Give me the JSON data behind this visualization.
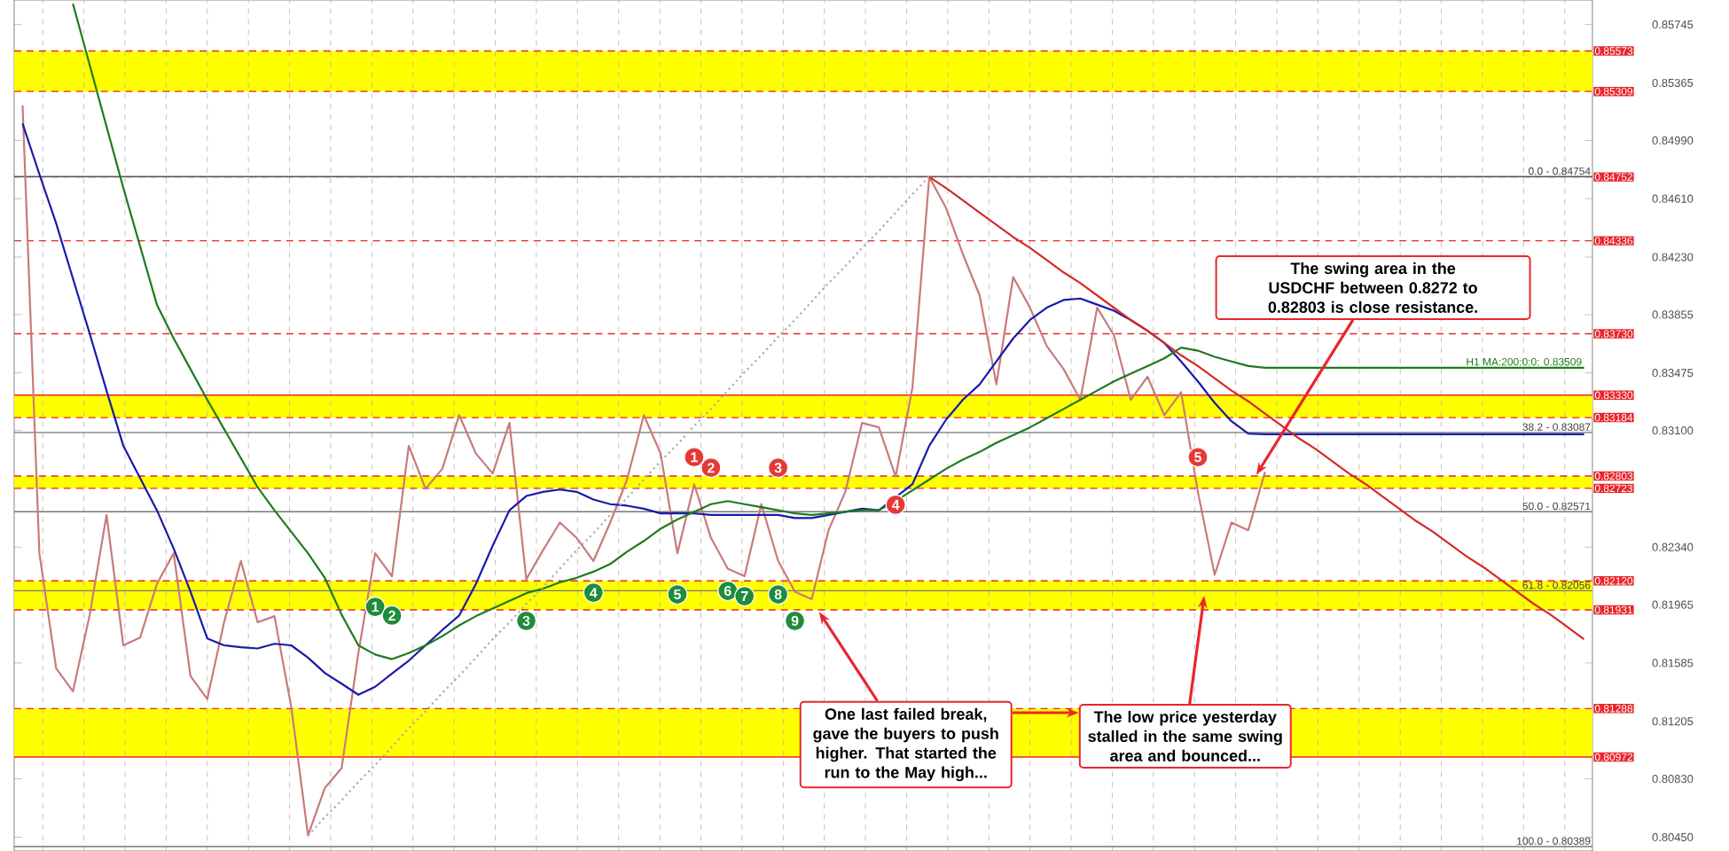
{
  "chart_data": {
    "type": "line",
    "categories": [
      null,
      null,
      null,
      null,
      null,
      null,
      null,
      null,
      null,
      null,
      null,
      null,
      null,
      null,
      null,
      null,
      null,
      null,
      null,
      null,
      null,
      null,
      null,
      null,
      null,
      null,
      null,
      null,
      null,
      null,
      null,
      null,
      null,
      null,
      null,
      null,
      null,
      null,
      null,
      null,
      null,
      null,
      null,
      null,
      null,
      null,
      null,
      null,
      null,
      null,
      null,
      null,
      null,
      null,
      null,
      null,
      null,
      null,
      null,
      null,
      null,
      null,
      null,
      null,
      null,
      null,
      null,
      null,
      null,
      null,
      null,
      null,
      null,
      null,
      null,
      null,
      null,
      null,
      null,
      null,
      null,
      null,
      null,
      null,
      null,
      null,
      null,
      null,
      null,
      null,
      null,
      null,
      null,
      null
    ],
    "ylim": [
      0.8036,
      0.85905
    ],
    "yticks": [
      0.85745,
      0.85365,
      {
        "value": 0.8499,
        "label": "0.84990"
      },
      {
        "value": 0.8461,
        "label": "0.84610"
      },
      {
        "value": 0.8423,
        "label": "0.84230"
      },
      0.83855,
      0.83475,
      {
        "value": 0.831,
        "label": "0.83100"
      },
      {
        "value": 0.8234,
        "label": "0.82340"
      },
      0.81965,
      0.81585,
      0.81205,
      {
        "value": 0.8083,
        "label": "0.80830"
      },
      {
        "value": 0.8045,
        "label": "0.80450"
      }
    ],
    "tick_labels": "y",
    "grid": "x",
    "bands": [
      {
        "axis": "y",
        "from": 0.85309,
        "to": 0.85573,
        "color": "#ffff00"
      },
      {
        "axis": "y",
        "from": 0.83184,
        "to": 0.8333,
        "color": "#ffff00"
      },
      {
        "axis": "y",
        "from": 0.82723,
        "to": 0.82803,
        "color": "#ffff00"
      },
      {
        "axis": "y",
        "from": 0.81931,
        "to": 0.8212,
        "color": "#ffff00"
      },
      {
        "axis": "y",
        "from": 0.80972,
        "to": 0.81288,
        "color": "#ffff00"
      }
    ],
    "ref_lines": [
      {
        "axis": "y",
        "value": 0.85573,
        "label": "0.85573",
        "color": "#e8262b",
        "line_style": "dashed"
      },
      {
        "axis": "y",
        "value": 0.85309,
        "label": "0.85309",
        "color": "#e8262b",
        "line_style": "dashed"
      },
      {
        "axis": "y",
        "value": 0.84752,
        "label": "0.84752",
        "color": "#e8262b",
        "line_style": "dashed"
      },
      {
        "axis": "y",
        "value": 0.84336,
        "label": "0.84336",
        "color": "#e8262b",
        "line_style": "dashed"
      },
      {
        "axis": "y",
        "value": 0.8373,
        "label": "0.83730",
        "color": "#e8262b",
        "line_style": "dashed"
      },
      {
        "axis": "y",
        "value": 0.8333,
        "label": "0.83330",
        "color": "#e8262b",
        "line_style": "solid"
      },
      {
        "axis": "y",
        "value": 0.83184,
        "label": "0.83184",
        "color": "#e8262b",
        "line_style": "dashed"
      },
      {
        "axis": "y",
        "value": 0.82803,
        "label": "0.82803",
        "color": "#e8262b",
        "line_style": "dashed"
      },
      {
        "axis": "y",
        "value": 0.82723,
        "label": "0.82723",
        "color": "#e8262b",
        "line_style": "dashed"
      },
      {
        "axis": "y",
        "value": 0.8212,
        "label": "0.82120",
        "color": "#e8262b",
        "line_style": "dashed"
      },
      {
        "axis": "y",
        "value": 0.81931,
        "label": "0.81931",
        "color": "#e8262b",
        "line_style": "dashed"
      },
      {
        "axis": "y",
        "value": 0.81288,
        "label": "0.81288",
        "color": "#e8262b",
        "line_style": "dashed"
      },
      {
        "axis": "y",
        "value": 0.80972,
        "label": "0.80972",
        "color": "#e8262b",
        "line_style": "solid"
      },
      {
        "axis": "y",
        "value": 0.84754,
        "color": "#555555",
        "line_style": "solid"
      },
      {
        "axis": "y",
        "value": 0.83087,
        "color": "#777777",
        "line_style": "solid"
      },
      {
        "axis": "y",
        "value": 0.82571,
        "color": "#777777",
        "line_style": "solid"
      },
      {
        "axis": "y",
        "value": 0.82056,
        "color": "#777777",
        "line_style": "solid"
      },
      {
        "axis": "y",
        "value": 0.80389,
        "color": "#777777",
        "line_style": "solid"
      }
    ],
    "series": [
      {
        "type": "line",
        "color": "#c97a7a",
        "values": [
          0.85218,
          0.823,
          0.8155,
          0.814,
          0.819,
          0.8255,
          0.817,
          0.8175,
          0.821,
          0.823,
          0.815,
          0.8135,
          0.8185,
          0.8225,
          0.8185,
          0.8189,
          0.813,
          0.80462,
          0.8077,
          0.809,
          0.8165,
          0.823,
          0.8215,
          0.83,
          0.8272,
          0.8285,
          0.832,
          0.8295,
          0.8282,
          0.8315,
          0.8213,
          0.8232,
          0.825,
          0.824,
          0.8225,
          0.825,
          0.8278,
          0.832,
          0.8295,
          0.823,
          0.8275,
          0.824,
          0.822,
          0.8215,
          0.8262,
          0.8225,
          0.8205,
          0.82,
          0.8245,
          0.827,
          0.8315,
          0.8312,
          0.828,
          0.8338,
          0.84752,
          0.8455,
          0.8425,
          0.8398,
          0.834,
          0.841,
          0.839,
          0.8365,
          0.835,
          0.833,
          0.839,
          0.8372,
          0.833,
          0.8345,
          0.832,
          0.8335,
          0.827,
          0.8216,
          0.825,
          0.8245,
          0.8283,
          null,
          null,
          null,
          null,
          null,
          null,
          null,
          null,
          null,
          null,
          null,
          null,
          null,
          null,
          null,
          null,
          null,
          null,
          null
        ]
      },
      {
        "type": "line",
        "color": "#1a1aa8",
        "values": [
          0.851,
          0.8477,
          0.8445,
          0.8409,
          0.8373,
          0.8336,
          0.83,
          0.8279,
          0.8258,
          0.8233,
          0.8205,
          0.81745,
          0.817,
          0.81688,
          0.8168,
          0.8171,
          0.817,
          0.8162,
          0.8152,
          0.8145,
          0.81378,
          0.8143,
          0.81516,
          0.816,
          0.817,
          0.818,
          0.81894,
          0.821,
          0.8235,
          0.8258,
          0.82673,
          0.827,
          0.82715,
          0.827,
          0.8265,
          0.8262,
          0.8261,
          0.8259,
          0.8256,
          0.8256,
          0.8256,
          0.8255,
          0.8255,
          0.8255,
          0.8255,
          0.8255,
          0.8253,
          0.8253,
          0.8255,
          0.8257,
          0.8259,
          0.8258,
          null,
          0.8275,
          0.83,
          0.8317,
          0.833,
          0.834,
          0.8355,
          0.837,
          0.8382,
          0.839,
          0.8395,
          0.8396,
          0.8392,
          0.8388,
          0.8382,
          0.8375,
          0.8367,
          0.8355,
          0.8342,
          0.8328,
          0.8316,
          0.8308,
          0.83075,
          0.83075,
          0.83075,
          0.83075,
          0.83075,
          0.83075,
          0.83075,
          0.83075,
          0.83075,
          0.83075,
          0.83075,
          0.83075,
          0.83075,
          0.83075,
          0.83075,
          0.83075,
          0.83075,
          0.83075,
          0.83075,
          0.83075
        ]
      },
      {
        "type": "line",
        "name": "H1 MA:200:0:0: 0.83509",
        "color": "#1f7a1f",
        "values": [
          null,
          null,
          null,
          0.8588,
          0.8548,
          0.8508,
          0.8468,
          0.843,
          0.8392,
          0.837,
          0.835,
          0.833,
          0.8311,
          0.8292,
          0.8273,
          0.8258,
          0.8244,
          0.823,
          0.8214,
          0.819,
          0.817,
          0.8164,
          0.8161,
          0.8165,
          0.817,
          0.8176,
          0.8183,
          0.8189,
          0.8194,
          0.8199,
          0.8204,
          0.8207,
          0.8211,
          0.8214,
          0.8218,
          0.8223,
          0.8231,
          0.8238,
          0.8246,
          0.8252,
          0.8257,
          0.8262,
          0.8264,
          0.8262,
          0.826,
          0.8258,
          0.8256,
          0.8255,
          0.8256,
          0.8257,
          0.8258,
          0.8258,
          0.8264,
          0.8271,
          0.8278,
          0.8285,
          0.8291,
          0.8296,
          0.8302,
          0.8307,
          0.8312,
          0.8318,
          0.8324,
          0.833,
          0.8336,
          0.8342,
          0.8347,
          0.8352,
          0.8357,
          0.8364,
          0.8362,
          0.8358,
          0.8355,
          0.8352,
          0.83509,
          0.83509,
          0.83509,
          0.83509,
          0.83509,
          0.83509,
          0.83509,
          0.83509,
          0.83509,
          0.83509,
          0.83509,
          0.83509,
          0.83509,
          0.83509,
          0.83509,
          0.83509,
          0.83509,
          0.83509,
          0.83509,
          0.83509
        ]
      },
      {
        "type": "line",
        "color": "#d42a2a",
        "values": [
          null,
          null,
          null,
          null,
          null,
          null,
          null,
          null,
          null,
          null,
          null,
          null,
          null,
          null,
          null,
          null,
          null,
          null,
          null,
          null,
          null,
          null,
          null,
          null,
          null,
          null,
          null,
          null,
          null,
          null,
          null,
          null,
          null,
          null,
          null,
          null,
          null,
          null,
          null,
          null,
          null,
          null,
          null,
          null,
          null,
          null,
          null,
          null,
          null,
          null,
          null,
          null,
          null,
          null,
          0.84752,
          0.8468,
          0.846,
          0.8452,
          0.8444,
          0.8436,
          0.8429,
          0.8421,
          0.8413,
          0.8406,
          0.8398,
          0.839,
          0.8382,
          0.8375,
          0.8367,
          0.8359,
          0.8352,
          0.8344,
          0.8336,
          0.8329,
          0.8321,
          0.8313,
          0.8305,
          0.8298,
          0.829,
          0.8282,
          0.8275,
          0.8267,
          0.8259,
          0.8251,
          0.8244,
          0.8236,
          0.8228,
          0.8221,
          0.8213,
          0.8205,
          0.8197,
          0.819,
          0.8182,
          0.8174
        ]
      },
      {
        "type": "line",
        "color": "#aaaaaa",
        "line_style": "dotted",
        "values": [
          null,
          null,
          null,
          null,
          null,
          null,
          null,
          null,
          null,
          null,
          null,
          null,
          null,
          null,
          null,
          null,
          null,
          0.8046,
          0.8058,
          0.8069,
          0.8081,
          0.8092,
          0.8104,
          0.8116,
          0.8127,
          0.8139,
          0.815,
          0.8162,
          0.8174,
          0.8185,
          0.8197,
          0.8208,
          0.822,
          0.8232,
          0.8243,
          0.8255,
          0.8266,
          0.8278,
          0.829,
          0.8301,
          0.8313,
          0.8324,
          0.8336,
          0.8348,
          0.8359,
          0.8371,
          0.8382,
          0.8394,
          0.8406,
          0.8417,
          0.8429,
          0.844,
          0.8452,
          0.8464,
          0.84754,
          null,
          null,
          null,
          null,
          null,
          null,
          null,
          null,
          null,
          null,
          null,
          null,
          null,
          null,
          null,
          null,
          null,
          null,
          null,
          null,
          null,
          null,
          null,
          null,
          null,
          null,
          null,
          null,
          null,
          null,
          null,
          null,
          null,
          null,
          null,
          null,
          null,
          null,
          null
        ]
      },
      {
        "type": "scatter",
        "marker": "circle",
        "name": "1",
        "color": "#1e8c3a",
        "values": [
          null,
          null,
          null,
          null,
          null,
          null,
          null,
          null,
          null,
          null,
          null,
          null,
          null,
          null,
          null,
          null,
          null,
          null,
          null,
          null,
          null,
          0.81951,
          null,
          null,
          null,
          null,
          null,
          null,
          null,
          null,
          null,
          null,
          null,
          null,
          null,
          null,
          null,
          null,
          null,
          null,
          null,
          null,
          null,
          null,
          null,
          null,
          null,
          null,
          null,
          null,
          null,
          null,
          null,
          null,
          null,
          null,
          null,
          null,
          null,
          null,
          null,
          null,
          null,
          null,
          null,
          null,
          null,
          null,
          null,
          null,
          null,
          null,
          null,
          null,
          null,
          null,
          null,
          null,
          null,
          null,
          null,
          null,
          null,
          null,
          null,
          null,
          null,
          null,
          null,
          null,
          null,
          null,
          null,
          null
        ]
      },
      {
        "type": "scatter",
        "marker": "circle",
        "name": "2",
        "color": "#1e8c3a",
        "values": [
          null,
          null,
          null,
          null,
          null,
          null,
          null,
          null,
          null,
          null,
          null,
          null,
          null,
          null,
          null,
          null,
          null,
          null,
          null,
          null,
          null,
          null,
          0.81894,
          null,
          null,
          null,
          null,
          null,
          null,
          null,
          null,
          null,
          null,
          null,
          null,
          null,
          null,
          null,
          null,
          null,
          null,
          null,
          null,
          null,
          null,
          null,
          null,
          null,
          null,
          null,
          null,
          null,
          null,
          null,
          null,
          null,
          null,
          null,
          null,
          null,
          null,
          null,
          null,
          null,
          null,
          null,
          null,
          null,
          null,
          null,
          null,
          null,
          null,
          null,
          null,
          null,
          null,
          null,
          null,
          null,
          null,
          null,
          null,
          null,
          null,
          null,
          null,
          null,
          null,
          null,
          null,
          null,
          null,
          null
        ]
      },
      {
        "type": "scatter",
        "marker": "circle",
        "name": "3",
        "color": "#1e8c3a",
        "values": [
          null,
          null,
          null,
          null,
          null,
          null,
          null,
          null,
          null,
          null,
          null,
          null,
          null,
          null,
          null,
          null,
          null,
          null,
          null,
          null,
          null,
          null,
          null,
          null,
          null,
          null,
          null,
          null,
          null,
          null,
          0.8186,
          null,
          null,
          null,
          null,
          null,
          null,
          null,
          null,
          null,
          null,
          null,
          null,
          null,
          null,
          null,
          null,
          null,
          null,
          null,
          null,
          null,
          null,
          null,
          null,
          null,
          null,
          null,
          null,
          null,
          null,
          null,
          null,
          null,
          null,
          null,
          null,
          null,
          null,
          null,
          null,
          null,
          null,
          null,
          null,
          null,
          null,
          null,
          null,
          null,
          null,
          null,
          null,
          null,
          null,
          null,
          null,
          null,
          null,
          null,
          null,
          null,
          null,
          null
        ]
      },
      {
        "type": "scatter",
        "marker": "circle",
        "name": "4",
        "color": "#1e8c3a",
        "values": [
          null,
          null,
          null,
          null,
          null,
          null,
          null,
          null,
          null,
          null,
          null,
          null,
          null,
          null,
          null,
          null,
          null,
          null,
          null,
          null,
          null,
          null,
          null,
          null,
          null,
          null,
          null,
          null,
          null,
          null,
          null,
          null,
          null,
          null,
          0.82043,
          null,
          null,
          null,
          null,
          null,
          null,
          null,
          null,
          null,
          null,
          null,
          null,
          null,
          null,
          null,
          null,
          null,
          null,
          null,
          null,
          null,
          null,
          null,
          null,
          null,
          null,
          null,
          null,
          null,
          null,
          null,
          null,
          null,
          null,
          null,
          null,
          null,
          null,
          null,
          null,
          null,
          null,
          null,
          null,
          null,
          null,
          null,
          null,
          null,
          null,
          null,
          null,
          null,
          null,
          null,
          null,
          null,
          null,
          null
        ]
      },
      {
        "type": "scatter",
        "marker": "circle",
        "name": "5",
        "color": "#1e8c3a",
        "values": [
          null,
          null,
          null,
          null,
          null,
          null,
          null,
          null,
          null,
          null,
          null,
          null,
          null,
          null,
          null,
          null,
          null,
          null,
          null,
          null,
          null,
          null,
          null,
          null,
          null,
          null,
          null,
          null,
          null,
          null,
          null,
          null,
          null,
          null,
          null,
          null,
          null,
          null,
          null,
          0.82032,
          null,
          null,
          null,
          null,
          null,
          null,
          null,
          null,
          null,
          null,
          null,
          null,
          null,
          null,
          null,
          null,
          null,
          null,
          null,
          null,
          null,
          null,
          null,
          null,
          null,
          null,
          null,
          null,
          null,
          null,
          null,
          null,
          null,
          null,
          null,
          null,
          null,
          null,
          null,
          null,
          null,
          null,
          null,
          null,
          null,
          null,
          null,
          null,
          null,
          null,
          null,
          null,
          null,
          null
        ]
      },
      {
        "type": "scatter",
        "marker": "circle",
        "name": "6",
        "color": "#1e8c3a",
        "values": [
          null,
          null,
          null,
          null,
          null,
          null,
          null,
          null,
          null,
          null,
          null,
          null,
          null,
          null,
          null,
          null,
          null,
          null,
          null,
          null,
          null,
          null,
          null,
          null,
          null,
          null,
          null,
          null,
          null,
          null,
          null,
          null,
          null,
          null,
          null,
          null,
          null,
          null,
          null,
          null,
          null,
          null,
          0.82055,
          null,
          null,
          null,
          null,
          null,
          null,
          null,
          null,
          null,
          null,
          null,
          null,
          null,
          null,
          null,
          null,
          null,
          null,
          null,
          null,
          null,
          null,
          null,
          null,
          null,
          null,
          null,
          null,
          null,
          null,
          null,
          null,
          null,
          null,
          null,
          null,
          null,
          null,
          null,
          null,
          null,
          null,
          null,
          null,
          null,
          null,
          null,
          null,
          null,
          null,
          null
        ]
      },
      {
        "type": "scatter",
        "marker": "circle",
        "name": "7",
        "color": "#1e8c3a",
        "values": [
          null,
          null,
          null,
          null,
          null,
          null,
          null,
          null,
          null,
          null,
          null,
          null,
          null,
          null,
          null,
          null,
          null,
          null,
          null,
          null,
          null,
          null,
          null,
          null,
          null,
          null,
          null,
          null,
          null,
          null,
          null,
          null,
          null,
          null,
          null,
          null,
          null,
          null,
          null,
          null,
          null,
          null,
          null,
          0.8202,
          null,
          null,
          null,
          null,
          null,
          null,
          null,
          null,
          null,
          null,
          null,
          null,
          null,
          null,
          null,
          null,
          null,
          null,
          null,
          null,
          null,
          null,
          null,
          null,
          null,
          null,
          null,
          null,
          null,
          null,
          null,
          null,
          null,
          null,
          null,
          null,
          null,
          null,
          null,
          null,
          null,
          null,
          null,
          null,
          null,
          null,
          null,
          null,
          null,
          null
        ]
      },
      {
        "type": "scatter",
        "marker": "circle",
        "name": "8",
        "color": "#1e8c3a",
        "values": [
          null,
          null,
          null,
          null,
          null,
          null,
          null,
          null,
          null,
          null,
          null,
          null,
          null,
          null,
          null,
          null,
          null,
          null,
          null,
          null,
          null,
          null,
          null,
          null,
          null,
          null,
          null,
          null,
          null,
          null,
          null,
          null,
          null,
          null,
          null,
          null,
          null,
          null,
          null,
          null,
          null,
          null,
          null,
          null,
          null,
          0.82032,
          null,
          null,
          null,
          null,
          null,
          null,
          null,
          null,
          null,
          null,
          null,
          null,
          null,
          null,
          null,
          null,
          null,
          null,
          null,
          null,
          null,
          null,
          null,
          null,
          null,
          null,
          null,
          null,
          null,
          null,
          null,
          null,
          null,
          null,
          null,
          null,
          null,
          null,
          null,
          null,
          null,
          null,
          null,
          null,
          null,
          null,
          null,
          null
        ]
      },
      {
        "type": "scatter",
        "marker": "circle",
        "name": "9",
        "color": "#1e8c3a",
        "values": [
          null,
          null,
          null,
          null,
          null,
          null,
          null,
          null,
          null,
          null,
          null,
          null,
          null,
          null,
          null,
          null,
          null,
          null,
          null,
          null,
          null,
          null,
          null,
          null,
          null,
          null,
          null,
          null,
          null,
          null,
          null,
          null,
          null,
          null,
          null,
          null,
          null,
          null,
          null,
          null,
          null,
          null,
          null,
          null,
          null,
          null,
          0.8186,
          null,
          null,
          null,
          null,
          null,
          null,
          null,
          null,
          null,
          null,
          null,
          null,
          null,
          null,
          null,
          null,
          null,
          null,
          null,
          null,
          null,
          null,
          null,
          null,
          null,
          null,
          null,
          null,
          null,
          null,
          null,
          null,
          null,
          null,
          null,
          null,
          null,
          null,
          null,
          null,
          null,
          null,
          null,
          null,
          null,
          null,
          null
        ]
      },
      {
        "type": "scatter",
        "marker": "circle",
        "name": "1",
        "color": "#e53935",
        "values": [
          null,
          null,
          null,
          null,
          null,
          null,
          null,
          null,
          null,
          null,
          null,
          null,
          null,
          null,
          null,
          null,
          null,
          null,
          null,
          null,
          null,
          null,
          null,
          null,
          null,
          null,
          null,
          null,
          null,
          null,
          null,
          null,
          null,
          null,
          null,
          null,
          null,
          null,
          null,
          null,
          0.82926,
          null,
          null,
          null,
          null,
          null,
          null,
          null,
          null,
          null,
          null,
          null,
          null,
          null,
          null,
          null,
          null,
          null,
          null,
          null,
          null,
          null,
          null,
          null,
          null,
          null,
          null,
          null,
          null,
          null,
          null,
          null,
          null,
          null,
          null,
          null,
          null,
          null,
          null,
          null,
          null,
          null,
          null,
          null,
          null,
          null,
          null,
          null,
          null,
          null,
          null,
          null,
          null,
          null
        ]
      },
      {
        "type": "scatter",
        "marker": "circle",
        "name": "2",
        "color": "#e53935",
        "values": [
          null,
          null,
          null,
          null,
          null,
          null,
          null,
          null,
          null,
          null,
          null,
          null,
          null,
          null,
          null,
          null,
          null,
          null,
          null,
          null,
          null,
          null,
          null,
          null,
          null,
          null,
          null,
          null,
          null,
          null,
          null,
          null,
          null,
          null,
          null,
          null,
          null,
          null,
          null,
          null,
          null,
          0.82857,
          null,
          null,
          null,
          null,
          null,
          null,
          null,
          null,
          null,
          null,
          null,
          null,
          null,
          null,
          null,
          null,
          null,
          null,
          null,
          null,
          null,
          null,
          null,
          null,
          null,
          null,
          null,
          null,
          null,
          null,
          null,
          null,
          null,
          null,
          null,
          null,
          null,
          null,
          null,
          null,
          null,
          null,
          null,
          null,
          null,
          null,
          null,
          null,
          null,
          null,
          null,
          null
        ]
      },
      {
        "type": "scatter",
        "marker": "circle",
        "name": "3",
        "color": "#e53935",
        "values": [
          null,
          null,
          null,
          null,
          null,
          null,
          null,
          null,
          null,
          null,
          null,
          null,
          null,
          null,
          null,
          null,
          null,
          null,
          null,
          null,
          null,
          null,
          null,
          null,
          null,
          null,
          null,
          null,
          null,
          null,
          null,
          null,
          null,
          null,
          null,
          null,
          null,
          null,
          null,
          null,
          null,
          null,
          null,
          null,
          null,
          0.82857,
          null,
          null,
          null,
          null,
          null,
          null,
          null,
          null,
          null,
          null,
          null,
          null,
          null,
          null,
          null,
          null,
          null,
          null,
          null,
          null,
          null,
          null,
          null,
          null,
          null,
          null,
          null,
          null,
          null,
          null,
          null,
          null,
          null,
          null,
          null,
          null,
          null,
          null,
          null,
          null,
          null,
          null,
          null,
          null,
          null,
          null,
          null,
          null
        ]
      },
      {
        "type": "scatter",
        "marker": "circle",
        "name": "4",
        "color": "#e53935",
        "values": [
          null,
          null,
          null,
          null,
          null,
          null,
          null,
          null,
          null,
          null,
          null,
          null,
          null,
          null,
          null,
          null,
          null,
          null,
          null,
          null,
          null,
          null,
          null,
          null,
          null,
          null,
          null,
          null,
          null,
          null,
          null,
          null,
          null,
          null,
          null,
          null,
          null,
          null,
          null,
          null,
          null,
          null,
          null,
          null,
          null,
          null,
          null,
          null,
          null,
          null,
          null,
          null,
          0.82616,
          null,
          null,
          null,
          null,
          null,
          null,
          null,
          null,
          null,
          null,
          null,
          null,
          null,
          null,
          null,
          null,
          null,
          null,
          null,
          null,
          null,
          null,
          null,
          null,
          null,
          null,
          null,
          null,
          null,
          null,
          null,
          null,
          null,
          null,
          null,
          null,
          null,
          null,
          null,
          null,
          null
        ]
      },
      {
        "type": "scatter",
        "marker": "circle",
        "name": "5",
        "color": "#e53935",
        "values": [
          null,
          null,
          null,
          null,
          null,
          null,
          null,
          null,
          null,
          null,
          null,
          null,
          null,
          null,
          null,
          null,
          null,
          null,
          null,
          null,
          null,
          null,
          null,
          null,
          null,
          null,
          null,
          null,
          null,
          null,
          null,
          null,
          null,
          null,
          null,
          null,
          null,
          null,
          null,
          null,
          null,
          null,
          null,
          null,
          null,
          null,
          null,
          null,
          null,
          null,
          null,
          null,
          null,
          null,
          null,
          null,
          null,
          null,
          null,
          null,
          null,
          null,
          null,
          null,
          null,
          null,
          null,
          null,
          null,
          null,
          0.82926,
          null,
          null,
          null,
          null,
          null,
          null,
          null,
          null,
          null,
          null,
          null,
          null,
          null,
          null,
          null,
          null,
          null,
          null,
          null,
          null,
          null,
          null,
          null
        ]
      }
    ],
    "annotations": [
      "The swing area in the USDCHF between 0.8272 to 0.82803 is close resistance.",
      "One last failed break, gave the buyers to push higher.  That started the run to the May high...",
      "The low price yesterday stalled in the same swing area and bounced...",
      {
        "text": "0.0 - 0.84754",
        "y": 0.84754
      },
      {
        "text": "38.2 - 0.83087",
        "y": 0.83087
      },
      {
        "text": "50.0 - 0.82571",
        "y": 0.82571
      },
      {
        "text": "61.8 - 0.82056",
        "y": 0.82056
      },
      {
        "text": "100.0 - 0.80389",
        "y": 0.80389
      }
    ]
  }
}
